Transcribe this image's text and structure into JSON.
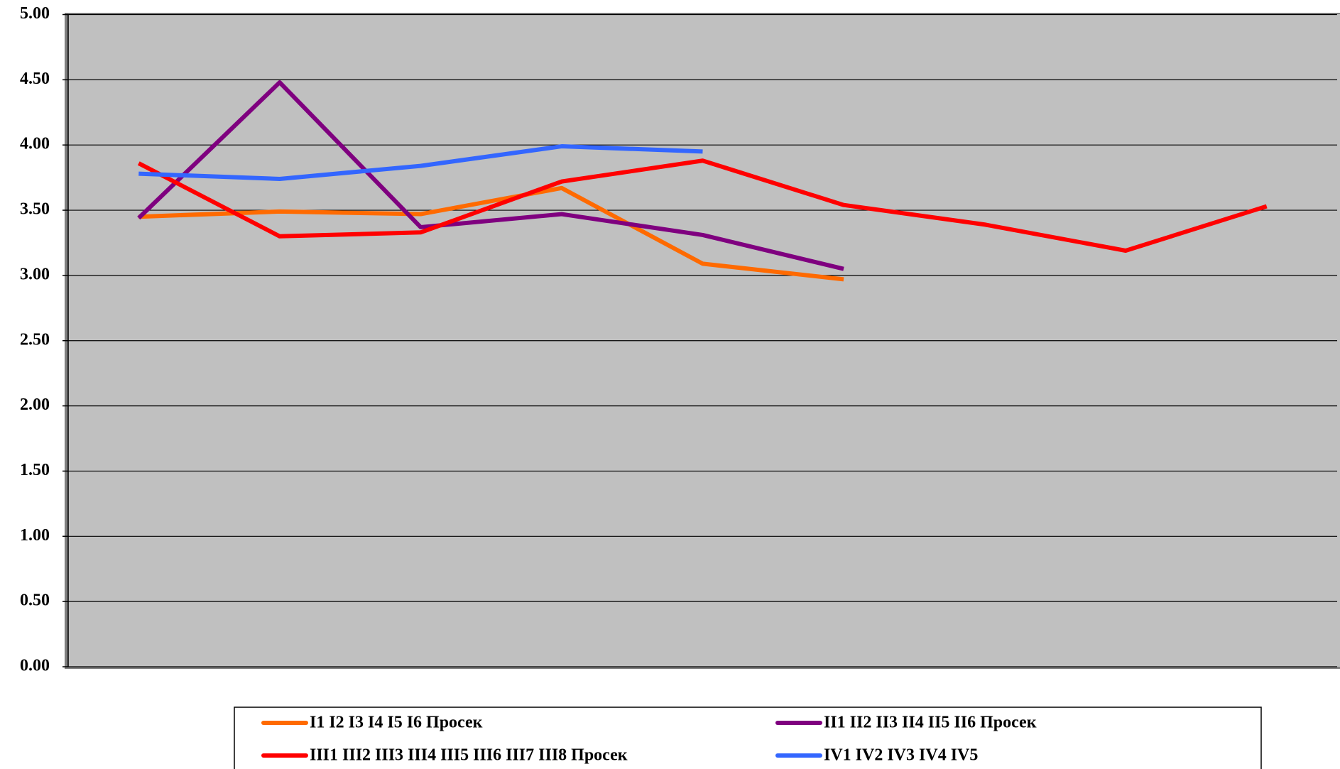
{
  "chart_data": {
    "type": "line",
    "categories": [
      null,
      null,
      null,
      null,
      null,
      null,
      null,
      null,
      null
    ],
    "series": [
      {
        "name": "I1 I2 I3 I4 I5 I6 Просек",
        "color": "#ff6a00",
        "values": [
          3.45,
          3.49,
          3.47,
          3.67,
          3.09,
          2.97,
          null,
          null,
          null
        ]
      },
      {
        "name": "II1 II2 II3 II4 II5 II6 Просек",
        "color": "#7f007f",
        "values": [
          3.44,
          4.48,
          3.37,
          3.47,
          3.31,
          3.05,
          null,
          null,
          null
        ]
      },
      {
        "name": "III1 III2 III3 III4 III5 III6 III7 III8 Просек",
        "color": "#ff0000",
        "values": [
          3.86,
          3.3,
          3.33,
          3.72,
          3.88,
          3.54,
          3.39,
          3.19,
          3.53
        ]
      },
      {
        "name": "IV1 IV2 IV3 IV4 IV5",
        "color": "#3366ff",
        "values": [
          3.78,
          3.74,
          3.84,
          3.99,
          3.95,
          null,
          null,
          null,
          null
        ]
      }
    ],
    "ylim": [
      0,
      5
    ],
    "yticks": [
      {
        "value": 0,
        "label": "0.00"
      },
      {
        "value": 0.5,
        "label": "0.50"
      },
      {
        "value": 1,
        "label": "1.00"
      },
      {
        "value": 1.5,
        "label": "1.50"
      },
      {
        "value": 2,
        "label": "2.00"
      },
      {
        "value": 2.5,
        "label": "2.50"
      },
      {
        "value": 3,
        "label": "3.00"
      },
      {
        "value": 3.5,
        "label": "3.50"
      },
      {
        "value": 4,
        "label": "4.00"
      },
      {
        "value": 4.5,
        "label": "4.50"
      },
      {
        "value": 5,
        "label": "5.00"
      }
    ],
    "grid": true,
    "legend": "bottom"
  }
}
